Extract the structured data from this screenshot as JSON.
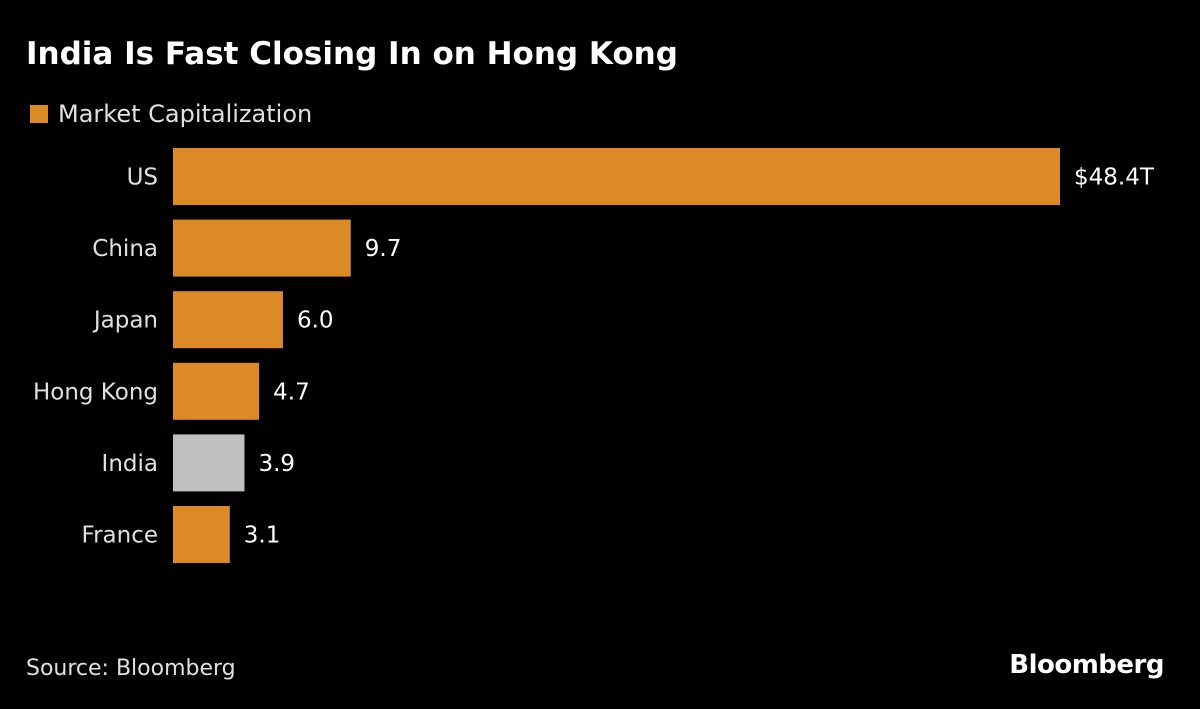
{
  "chart_data": {
    "type": "bar",
    "orientation": "horizontal",
    "title": "India Is Fast Closing In on Hong Kong",
    "legend": [
      {
        "label": "Market Capitalization",
        "color": "#dc8a26"
      }
    ],
    "categories": [
      "US",
      "China",
      "Japan",
      "Hong Kong",
      "India",
      "France"
    ],
    "values": [
      48.4,
      9.7,
      6.0,
      4.7,
      3.9,
      3.1
    ],
    "value_labels": [
      "$48.4T",
      "9.7",
      "6.0",
      "4.7",
      "3.9",
      "3.1"
    ],
    "bar_colors": [
      "#dc8a26",
      "#dc8a26",
      "#dc8a26",
      "#dc8a26",
      "#c0c0c0",
      "#dc8a26"
    ],
    "xlabel": "",
    "ylabel": "",
    "xlim": [
      0,
      48.4
    ],
    "grid": false,
    "legend_position": "top-left"
  },
  "source": "Source: Bloomberg",
  "logo": "Bloomberg"
}
